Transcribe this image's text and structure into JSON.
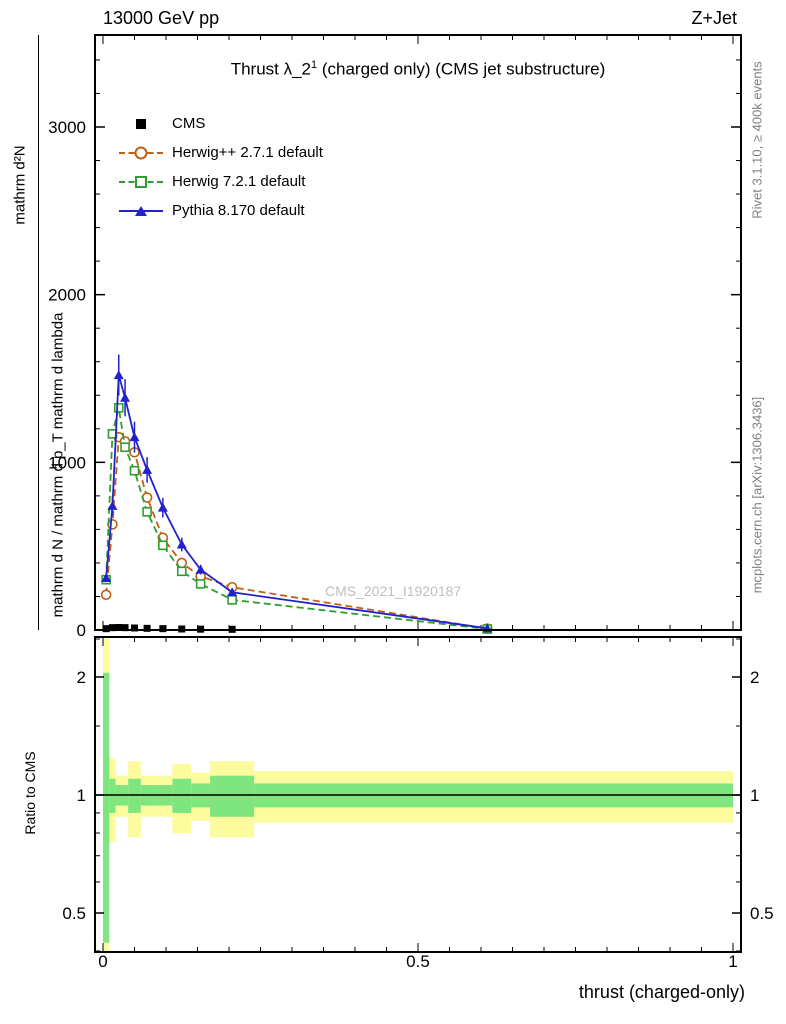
{
  "header": {
    "left": "13000 GeV pp",
    "right": "Z+Jet"
  },
  "plot": {
    "title_main": "Thrust λ_2",
    "title_sup": "1",
    "title_rest": " (charged only) (CMS jet substructure)",
    "watermark": "CMS_2021_I1920187",
    "y_axis_numerator": "mathrm d²N",
    "y_axis_denominator": "mathrm d N / mathrm d p_T mathrm d lambda",
    "right_label_top": "Rivet 3.1.10, ≥ 400k events",
    "right_label_bottom": "mcplots.cern.ch [arXiv:1306.3436]",
    "x_axis_title": "thrust (charged-only)",
    "ratio_label": "Ratio to CMS"
  },
  "colors": {
    "cms": "#000000",
    "herwigpp": "#c06014",
    "herwig7": "#2f9e2f",
    "pythia": "#2222cc",
    "band_yellow": "#fcfc9e",
    "band_green": "#7fe57f"
  },
  "legend": [
    {
      "label": "CMS",
      "marker": "filled-square",
      "color": "#000000",
      "line": "none"
    },
    {
      "label": "Herwig++ 2.7.1 default",
      "marker": "open-circle",
      "color": "#c06014",
      "line": "dashed"
    },
    {
      "label": "Herwig 7.2.1 default",
      "marker": "open-square",
      "color": "#2f9e2f",
      "line": "dashed"
    },
    {
      "label": "Pythia 8.170 default",
      "marker": "filled-triangle",
      "color": "#2222cc",
      "line": "solid"
    }
  ],
  "chart_data": [
    {
      "type": "line",
      "title": "Thrust λ_2^1 (charged only) (CMS jet substructure)",
      "xlabel": "thrust (charged-only)",
      "ylabel": "mathrm d²N / mathrm d p_T mathrm d lambda",
      "xlim": [
        0,
        1.013
      ],
      "ylim": [
        0,
        3550
      ],
      "grid": false,
      "legend_position": "upper-left",
      "y_ticks_labeled": [
        0,
        1000,
        2000,
        3000
      ],
      "x_ticks_labeled": [
        0,
        0.5,
        1
      ],
      "x": [
        0.005,
        0.015,
        0.025,
        0.035,
        0.05,
        0.07,
        0.095,
        0.125,
        0.155,
        0.205,
        0.61
      ],
      "series": [
        {
          "name": "CMS",
          "color": "#000000",
          "marker": "filled-square",
          "line": "none",
          "values": [
            8,
            14,
            15,
            14,
            12,
            10,
            8,
            6,
            5,
            4,
            0.3
          ]
        },
        {
          "name": "Herwig++ 2.7.1 default",
          "color": "#c06014",
          "marker": "open-circle",
          "line": "dashed",
          "values": [
            210,
            630,
            1150,
            1125,
            1060,
            790,
            550,
            400,
            320,
            255,
            8
          ]
        },
        {
          "name": "Herwig 7.2.1 default",
          "color": "#2f9e2f",
          "marker": "open-square",
          "line": "dashed",
          "values": [
            300,
            1170,
            1325,
            1090,
            950,
            705,
            505,
            350,
            275,
            180,
            6
          ]
        },
        {
          "name": "Pythia 8.170 default",
          "color": "#2222cc",
          "marker": "filled-triangle",
          "line": "solid",
          "values": [
            310,
            740,
            1520,
            1385,
            1150,
            955,
            730,
            510,
            360,
            225,
            10
          ],
          "yerr_frac": 0.08
        }
      ]
    },
    {
      "type": "ratio-band",
      "ylabel": "Ratio to CMS",
      "yscale": "log",
      "ylim": [
        0.4,
        2.52
      ],
      "reference_line": 1,
      "y_ticks_labeled": [
        0.5,
        1,
        2
      ],
      "x_ticks_labeled": [
        0,
        0.5,
        1
      ],
      "bin_edges": [
        0,
        0.01,
        0.02,
        0.03,
        0.04,
        0.06,
        0.08,
        0.11,
        0.14,
        0.17,
        0.24,
        1.0
      ],
      "yellow_total_unc": [
        [
          0.38,
          2.55
        ],
        [
          0.76,
          1.24
        ],
        [
          0.88,
          1.12
        ],
        [
          0.88,
          1.12
        ],
        [
          0.78,
          1.22
        ],
        [
          0.88,
          1.12
        ],
        [
          0.88,
          1.12
        ],
        [
          0.8,
          1.2
        ],
        [
          0.86,
          1.14
        ],
        [
          0.78,
          1.22
        ],
        [
          0.85,
          1.15
        ]
      ],
      "green_stat_unc": [
        [
          0.42,
          2.05
        ],
        [
          0.9,
          1.1
        ],
        [
          0.94,
          1.06
        ],
        [
          0.94,
          1.06
        ],
        [
          0.9,
          1.1
        ],
        [
          0.94,
          1.06
        ],
        [
          0.94,
          1.06
        ],
        [
          0.9,
          1.1
        ],
        [
          0.93,
          1.07
        ],
        [
          0.88,
          1.12
        ],
        [
          0.93,
          1.07
        ]
      ]
    }
  ]
}
